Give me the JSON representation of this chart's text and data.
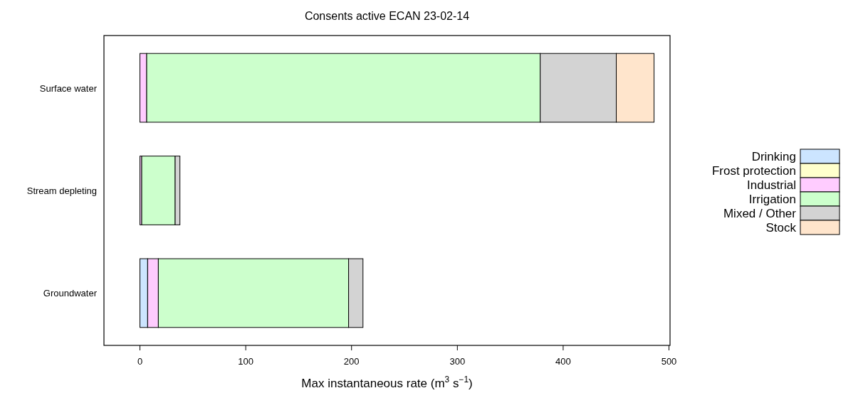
{
  "chart_data": {
    "type": "bar",
    "orientation": "horizontal",
    "stacked": true,
    "title": "Consents active ECAN 23-02-14",
    "xlabel": "Max instantaneous rate (m$^{3}$ s$^{−1}$)",
    "categories": [
      "Surface water",
      "Stream depleting",
      "Groundwater"
    ],
    "series": [
      {
        "name": "Drinking",
        "color": "#cce5ff",
        "values": [
          0,
          0,
          7.3
        ]
      },
      {
        "name": "Frost protection",
        "color": "#ffffcc",
        "values": [
          0,
          0,
          0
        ]
      },
      {
        "name": "Industrial",
        "color": "#ffccff",
        "values": [
          6.4,
          1.7,
          10.1
        ]
      },
      {
        "name": "Irrigation",
        "color": "#ccffcc",
        "values": [
          371.9,
          31.6,
          179.8
        ]
      },
      {
        "name": "Mixed / Other",
        "color": "#d3d3d3",
        "values": [
          71.9,
          4.5,
          13.6
        ]
      },
      {
        "name": "Stock",
        "color": "#ffe5cc",
        "values": [
          35.7,
          0,
          0
        ]
      }
    ],
    "xlim": [
      -34,
      501
    ],
    "xticks": [
      0,
      100,
      200,
      300,
      400,
      500
    ],
    "grid": false,
    "legend": "right"
  }
}
